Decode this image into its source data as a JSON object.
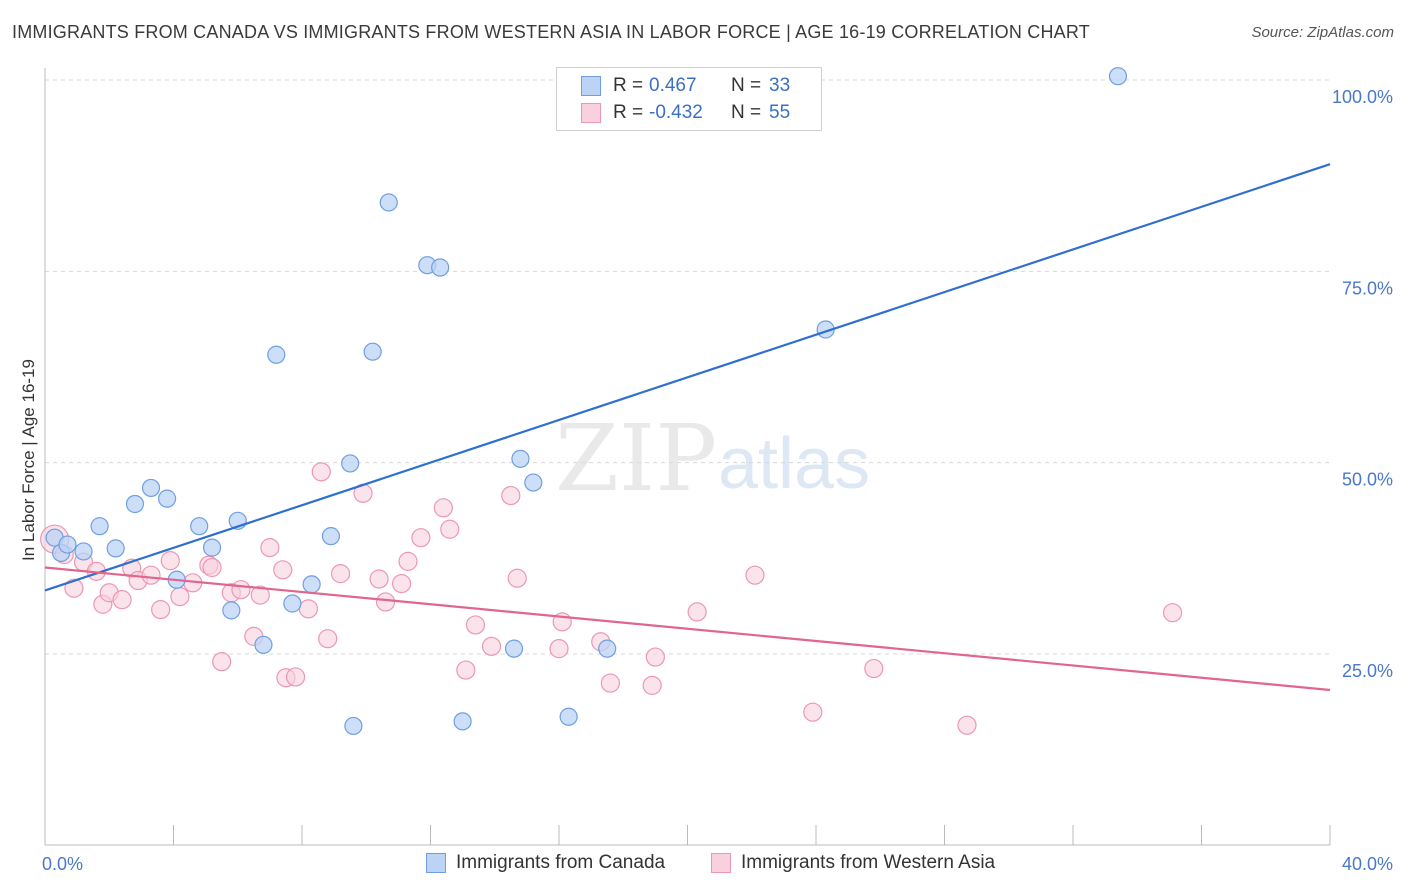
{
  "title": "IMMIGRANTS FROM CANADA VS IMMIGRANTS FROM WESTERN ASIA IN LABOR FORCE | AGE 16-19 CORRELATION CHART",
  "source": "Source: ZipAtlas.com",
  "watermark": {
    "zip": "ZIP",
    "atlas": "atlas"
  },
  "legend": {
    "rows": [
      {
        "r_label": "R =",
        "r_value": "0.467",
        "n_label": "N =",
        "n_value": "33",
        "color": "#6f9fe0"
      },
      {
        "r_label": "R =",
        "r_value": "-0.432",
        "n_label": "N =",
        "n_value": "55",
        "color": "#f08bb0"
      }
    ]
  },
  "bottom_legend": {
    "canada": "Immigrants from Canada",
    "western_asia": "Immigrants from Western Asia"
  },
  "colors": {
    "canada_fill": "#bcd3f5",
    "canada_stroke": "#6f9fe0",
    "canada_line": "#2f6fcf",
    "wasia_fill": "#f9d0de",
    "wasia_stroke": "#ec97b4",
    "wasia_line": "#e0658f",
    "tick": "#4a78c8",
    "grid": "#d8d8d8"
  },
  "chart_data": {
    "type": "scatter",
    "title": "IMMIGRANTS FROM CANADA VS IMMIGRANTS FROM WESTERN ASIA IN LABOR FORCE | AGE 16-19 CORRELATION CHART",
    "xlabel": "",
    "ylabel": "In Labor Force | Age 16-19",
    "xlim": [
      0,
      40
    ],
    "ylim": [
      0,
      105
    ],
    "x_tick_labels": [
      "0.0%",
      "40.0%"
    ],
    "y_tick_labels": [
      "25.0%",
      "50.0%",
      "75.0%",
      "100.0%"
    ],
    "y_ticks": [
      25,
      50,
      75,
      100
    ],
    "grid": true,
    "legend_position": "top-center",
    "series": [
      {
        "name": "Immigrants from Canada",
        "r": 0.467,
        "n": 33,
        "trend": {
          "x": [
            0,
            40
          ],
          "y": [
            33.3,
            89.0
          ]
        },
        "points": [
          [
            0.3,
            40.2
          ],
          [
            0.5,
            38.2
          ],
          [
            0.7,
            39.3
          ],
          [
            1.2,
            38.4
          ],
          [
            1.7,
            41.7
          ],
          [
            2.2,
            38.8
          ],
          [
            2.8,
            44.6
          ],
          [
            3.3,
            46.7
          ],
          [
            3.8,
            45.3
          ],
          [
            4.1,
            34.7
          ],
          [
            4.8,
            41.7
          ],
          [
            5.2,
            38.9
          ],
          [
            5.8,
            30.7
          ],
          [
            6.0,
            42.4
          ],
          [
            6.8,
            26.2
          ],
          [
            7.2,
            64.1
          ],
          [
            7.7,
            31.6
          ],
          [
            8.3,
            34.1
          ],
          [
            8.9,
            40.4
          ],
          [
            9.6,
            15.6
          ],
          [
            9.5,
            49.9
          ],
          [
            10.2,
            64.5
          ],
          [
            10.7,
            84.0
          ],
          [
            11.9,
            75.8
          ],
          [
            12.3,
            75.5
          ],
          [
            13.0,
            16.2
          ],
          [
            14.6,
            25.7
          ],
          [
            14.8,
            50.5
          ],
          [
            15.2,
            47.4
          ],
          [
            16.3,
            16.8
          ],
          [
            17.5,
            25.7
          ],
          [
            24.3,
            67.4
          ],
          [
            33.4,
            100.5
          ]
        ]
      },
      {
        "name": "Immigrants from Western Asia",
        "r": -0.432,
        "n": 55,
        "trend": {
          "x": [
            0,
            40
          ],
          "y": [
            36.3,
            20.3
          ]
        },
        "points": [
          [
            0.3,
            40.0
          ],
          [
            0.6,
            38.0
          ],
          [
            0.9,
            33.6
          ],
          [
            1.2,
            37.0
          ],
          [
            1.6,
            35.8
          ],
          [
            1.8,
            31.5
          ],
          [
            2.0,
            33.0
          ],
          [
            2.4,
            32.1
          ],
          [
            2.7,
            36.2
          ],
          [
            2.9,
            34.6
          ],
          [
            3.3,
            35.3
          ],
          [
            3.6,
            30.8
          ],
          [
            3.9,
            37.2
          ],
          [
            4.2,
            32.5
          ],
          [
            4.6,
            34.3
          ],
          [
            5.1,
            36.6
          ],
          [
            5.2,
            36.3
          ],
          [
            5.5,
            24.0
          ],
          [
            5.8,
            33.0
          ],
          [
            6.1,
            33.4
          ],
          [
            6.5,
            27.3
          ],
          [
            6.7,
            32.7
          ],
          [
            7.0,
            38.9
          ],
          [
            7.4,
            36.0
          ],
          [
            7.5,
            21.9
          ],
          [
            7.8,
            22.0
          ],
          [
            8.2,
            30.9
          ],
          [
            8.6,
            48.8
          ],
          [
            8.8,
            27.0
          ],
          [
            9.2,
            35.5
          ],
          [
            9.9,
            46.0
          ],
          [
            10.4,
            34.8
          ],
          [
            10.6,
            31.8
          ],
          [
            11.1,
            34.2
          ],
          [
            11.3,
            37.1
          ],
          [
            11.7,
            40.2
          ],
          [
            12.4,
            44.1
          ],
          [
            12.6,
            41.3
          ],
          [
            13.1,
            22.9
          ],
          [
            13.4,
            28.8
          ],
          [
            13.9,
            26.0
          ],
          [
            14.5,
            45.7
          ],
          [
            14.7,
            34.9
          ],
          [
            16.0,
            25.7
          ],
          [
            16.1,
            29.2
          ],
          [
            17.3,
            26.6
          ],
          [
            17.6,
            21.2
          ],
          [
            18.9,
            20.9
          ],
          [
            19.0,
            24.6
          ],
          [
            20.3,
            30.5
          ],
          [
            22.1,
            35.3
          ],
          [
            23.9,
            17.4
          ],
          [
            25.8,
            23.1
          ],
          [
            28.7,
            15.7
          ],
          [
            35.1,
            30.4
          ]
        ]
      }
    ]
  }
}
